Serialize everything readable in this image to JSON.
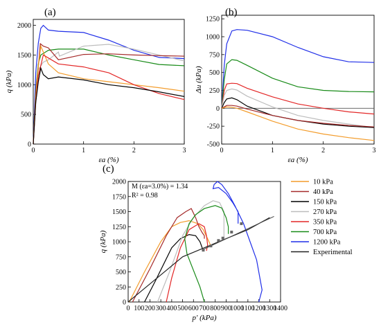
{
  "colors": {
    "10 kPa": "#f39c2b",
    "40 kPa": "#a52a2a",
    "150 kPa": "#000000",
    "270 kPa": "#bdbdbd",
    "350 kPa": "#e32626",
    "700 kPa": "#178a17",
    "1200 kPa": "#1f2ee8",
    "Experimental": "#222222",
    "fit_line": "#444444"
  },
  "chart_data": [
    {
      "type": "line",
      "panel": "(a)",
      "xlabel": "εa (%)",
      "ylabel": "q (kPa)",
      "xlim": [
        0,
        3
      ],
      "ylim": [
        0,
        2100
      ],
      "xticks": [
        0,
        1,
        2,
        3
      ],
      "yticks": [
        0,
        500,
        1000,
        1500,
        2000
      ],
      "series": [
        {
          "name": "1200 kPa",
          "x": [
            0,
            0.05,
            0.1,
            0.15,
            0.2,
            0.3,
            0.5,
            1,
            1.5,
            2,
            2.5,
            3
          ],
          "y": [
            0,
            1200,
            1700,
            1950,
            2000,
            1920,
            1900,
            1880,
            1750,
            1580,
            1460,
            1440
          ]
        },
        {
          "name": "700 kPa",
          "x": [
            0,
            0.05,
            0.1,
            0.15,
            0.3,
            0.5,
            1,
            1.5,
            2,
            2.5,
            3
          ],
          "y": [
            0,
            900,
            1350,
            1500,
            1580,
            1600,
            1600,
            1500,
            1420,
            1340,
            1320
          ]
        },
        {
          "name": "270 kPa",
          "x": [
            0,
            0.05,
            0.1,
            0.2,
            0.3,
            0.5,
            0.52,
            1,
            1.5,
            2,
            2.5,
            3
          ],
          "y": [
            0,
            800,
            1250,
            1380,
            1420,
            1550,
            1480,
            1650,
            1680,
            1600,
            1500,
            1400
          ]
        },
        {
          "name": "40 kPa",
          "x": [
            0,
            0.05,
            0.1,
            0.14,
            0.2,
            0.3,
            0.5,
            1,
            1.5,
            2,
            2.5,
            3
          ],
          "y": [
            0,
            850,
            1300,
            1690,
            1650,
            1620,
            1420,
            1510,
            1520,
            1500,
            1490,
            1480
          ]
        },
        {
          "name": "10 kPa",
          "x": [
            0,
            0.05,
            0.1,
            0.15,
            0.2,
            0.3,
            0.5,
            1,
            1.5,
            2,
            2.5,
            3
          ],
          "y": [
            0,
            800,
            1300,
            1650,
            1550,
            1350,
            1200,
            1100,
            1050,
            1000,
            950,
            890
          ]
        },
        {
          "name": "350 kPa",
          "x": [
            0,
            0.05,
            0.1,
            0.2,
            0.3,
            0.5,
            1,
            1.5,
            2,
            2.5,
            3
          ],
          "y": [
            0,
            700,
            1150,
            1500,
            1450,
            1350,
            1300,
            1200,
            1000,
            850,
            750
          ]
        },
        {
          "name": "150 kPa",
          "x": [
            0,
            0.05,
            0.1,
            0.15,
            0.2,
            0.3,
            0.5,
            1,
            1.5,
            2,
            2.5,
            3
          ],
          "y": [
            0,
            700,
            1050,
            1280,
            1170,
            1100,
            1130,
            1080,
            1000,
            950,
            880,
            800
          ]
        }
      ]
    },
    {
      "type": "line",
      "panel": "(b)",
      "xlabel": "εa (%)",
      "ylabel": "Δu (kPa)",
      "xlim": [
        0,
        3
      ],
      "ylim": [
        -500,
        1300
      ],
      "xticks": [
        0,
        1,
        2,
        3
      ],
      "yticks": [
        -500,
        -250,
        0,
        250,
        500,
        750,
        1000,
        1250
      ],
      "series": [
        {
          "name": "1200 kPa",
          "x": [
            0,
            0.05,
            0.1,
            0.2,
            0.3,
            0.5,
            1,
            1.5,
            2,
            2.5,
            3
          ],
          "y": [
            0,
            600,
            900,
            1080,
            1100,
            1090,
            1000,
            850,
            720,
            650,
            640
          ]
        },
        {
          "name": "700 kPa",
          "x": [
            0,
            0.05,
            0.1,
            0.2,
            0.3,
            0.5,
            1,
            1.5,
            2,
            2.5,
            3
          ],
          "y": [
            0,
            400,
            620,
            680,
            670,
            600,
            420,
            300,
            250,
            235,
            230
          ]
        },
        {
          "name": "350 kPa",
          "x": [
            0,
            0.05,
            0.1,
            0.2,
            0.3,
            0.5,
            1,
            1.5,
            2,
            2.5,
            3
          ],
          "y": [
            0,
            250,
            340,
            350,
            345,
            280,
            160,
            60,
            0,
            -50,
            -80
          ]
        },
        {
          "name": "270 kPa",
          "x": [
            0,
            0.05,
            0.1,
            0.2,
            0.3,
            0.5,
            1,
            1.5,
            2,
            2.5,
            3
          ],
          "y": [
            0,
            180,
            250,
            270,
            255,
            170,
            20,
            -100,
            -170,
            -220,
            -270
          ]
        },
        {
          "name": "150 kPa",
          "x": [
            0,
            0.05,
            0.1,
            0.2,
            0.3,
            0.5,
            1,
            1.5,
            2,
            2.5,
            3
          ],
          "y": [
            0,
            80,
            130,
            145,
            120,
            30,
            -100,
            -170,
            -220,
            -250,
            -270
          ]
        },
        {
          "name": "40 kPa",
          "x": [
            0,
            0.05,
            0.1,
            0.2,
            0.3,
            0.5,
            1,
            1.5,
            2,
            2.5,
            3
          ],
          "y": [
            0,
            20,
            40,
            40,
            30,
            -10,
            -100,
            -170,
            -210,
            -240,
            -260
          ]
        },
        {
          "name": "10 kPa",
          "x": [
            0,
            0.05,
            0.1,
            0.2,
            0.3,
            0.5,
            1,
            1.5,
            2,
            2.5,
            3
          ],
          "y": [
            0,
            10,
            20,
            15,
            0,
            -50,
            -180,
            -290,
            -360,
            -410,
            -450
          ]
        }
      ]
    },
    {
      "type": "line",
      "panel": "(c)",
      "xlabel": "p' (kPa)",
      "ylabel": "q (kPa)",
      "xlim": [
        0,
        1400
      ],
      "ylim": [
        0,
        2000
      ],
      "xticks": [
        0,
        100,
        200,
        300,
        400,
        500,
        600,
        700,
        800,
        900,
        1000,
        1100,
        1200,
        1300,
        1400
      ],
      "yticks": [
        0,
        250,
        500,
        750,
        1000,
        1250,
        1500,
        1750,
        2000
      ],
      "annotations": [
        "M (εa=3.0%) = 1.34",
        "R² = 0.98"
      ],
      "series": [
        {
          "name": "10 kPa",
          "x": [
            10,
            150,
            300,
            400,
            480,
            560,
            640,
            690,
            730,
            760
          ],
          "y": [
            0,
            500,
            1000,
            1250,
            1320,
            1350,
            1300,
            1200,
            1050,
            930
          ]
        },
        {
          "name": "40 kPa",
          "x": [
            40,
            200,
            350,
            450,
            530,
            580,
            620,
            650,
            680,
            700,
            700
          ],
          "y": [
            0,
            550,
            1100,
            1400,
            1500,
            1550,
            1400,
            1250,
            1150,
            1100,
            1050
          ]
        },
        {
          "name": "150 kPa",
          "x": [
            150,
            250,
            400,
            480,
            560,
            620,
            660,
            690
          ],
          "y": [
            0,
            350,
            900,
            1050,
            1120,
            1100,
            1000,
            850
          ]
        },
        {
          "name": "270 kPa",
          "x": [
            270,
            380,
            500,
            600,
            700,
            780,
            840,
            880,
            880
          ],
          "y": [
            0,
            500,
            1100,
            1400,
            1600,
            1680,
            1650,
            1500,
            1050
          ]
        },
        {
          "name": "350 kPa",
          "x": [
            350,
            400,
            480,
            560,
            650,
            700,
            720,
            730,
            720
          ],
          "y": [
            0,
            400,
            900,
            1200,
            1300,
            1250,
            1100,
            950,
            850
          ]
        },
        {
          "name": "700 kPa",
          "x": [
            700,
            660,
            540,
            520,
            560,
            620,
            700,
            800,
            860,
            900,
            920,
            920
          ],
          "y": [
            0,
            250,
            800,
            1050,
            1300,
            1450,
            1550,
            1600,
            1560,
            1400,
            1250,
            1130
          ]
        },
        {
          "name": "1200 kPa",
          "x": [
            1200,
            1230,
            1180,
            1120,
            1060,
            980,
            920,
            860,
            820,
            790,
            780,
            830,
            900,
            960,
            1010,
            1010
          ],
          "y": [
            0,
            200,
            700,
            1000,
            1300,
            1600,
            1800,
            1950,
            2000,
            1950,
            1880,
            1900,
            1800,
            1650,
            1500,
            1300
          ]
        },
        {
          "name": "Experimental",
          "x": [
            0,
            100,
            300,
            500,
            700,
            900,
            1100,
            1300
          ],
          "y": [
            0,
            150,
            450,
            750,
            900,
            1050,
            1200,
            1400
          ]
        }
      ]
    }
  ],
  "panel_c_legend": [
    "10 kPa",
    "40 kPa",
    "150 kPa",
    "270 kPa",
    "350 kPa",
    "700 kPa",
    "1200 kPa",
    "Experimental"
  ]
}
